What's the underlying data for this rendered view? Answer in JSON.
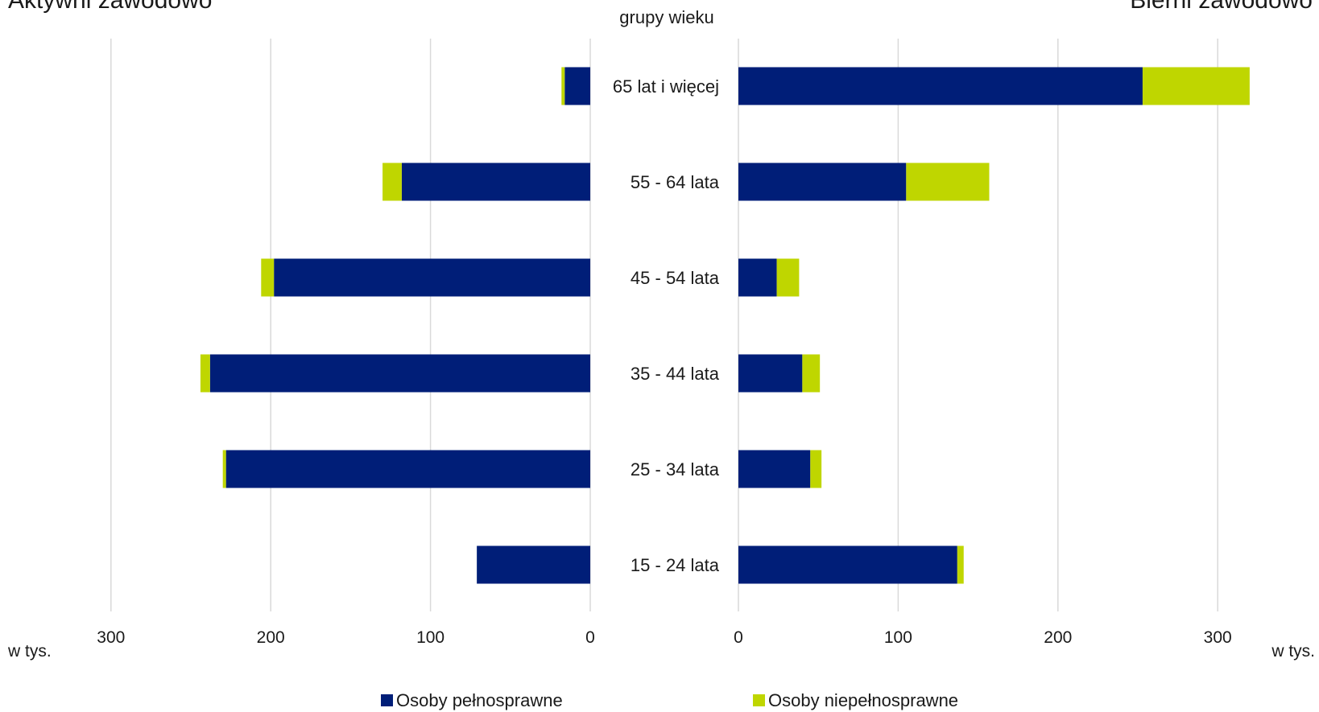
{
  "chart_data": {
    "type": "bar",
    "orientation": "horizontal",
    "layout": "population-pyramid",
    "title_left": "Aktywni zawodowo",
    "title_right": "Bierni zawodowo",
    "center_label": "grupy wieku",
    "unit_label": "w tys.",
    "categories": [
      "65 lat i więcej",
      "55 - 64 lata",
      "45 - 54 lata",
      "35 - 44 lata",
      "25 - 34 lata",
      "15 - 24 lata"
    ],
    "panels": [
      {
        "title": "Aktywni zawodowo",
        "direction": "left",
        "xlim": [
          0,
          300
        ],
        "ticks": [
          300,
          200,
          100,
          0
        ],
        "series": [
          {
            "name": "Osoby pełnosprawne",
            "color": "#001e78",
            "values": [
              16,
              118,
              198,
              238,
              228,
              71
            ]
          },
          {
            "name": "Osoby niepełnosprawne",
            "color": "#bfd600",
            "values": [
              2,
              12,
              8,
              6,
              2,
              0
            ]
          }
        ]
      },
      {
        "title": "Bierni zawodowo",
        "direction": "right",
        "xlim": [
          0,
          300
        ],
        "ticks": [
          0,
          100,
          200,
          300
        ],
        "series": [
          {
            "name": "Osoby pełnosprawne",
            "color": "#001e78",
            "values": [
              253,
              105,
              24,
              40,
              45,
              137
            ]
          },
          {
            "name": "Osoby niepełnosprawne",
            "color": "#bfd600",
            "values": [
              67,
              52,
              14,
              11,
              7,
              4
            ]
          }
        ]
      }
    ],
    "legend": [
      {
        "name": "Osoby pełnosprawne",
        "color": "#001e78"
      },
      {
        "name": "Osoby niepełnosprawne",
        "color": "#bfd600"
      }
    ],
    "grid": true,
    "legend_position": "bottom"
  }
}
